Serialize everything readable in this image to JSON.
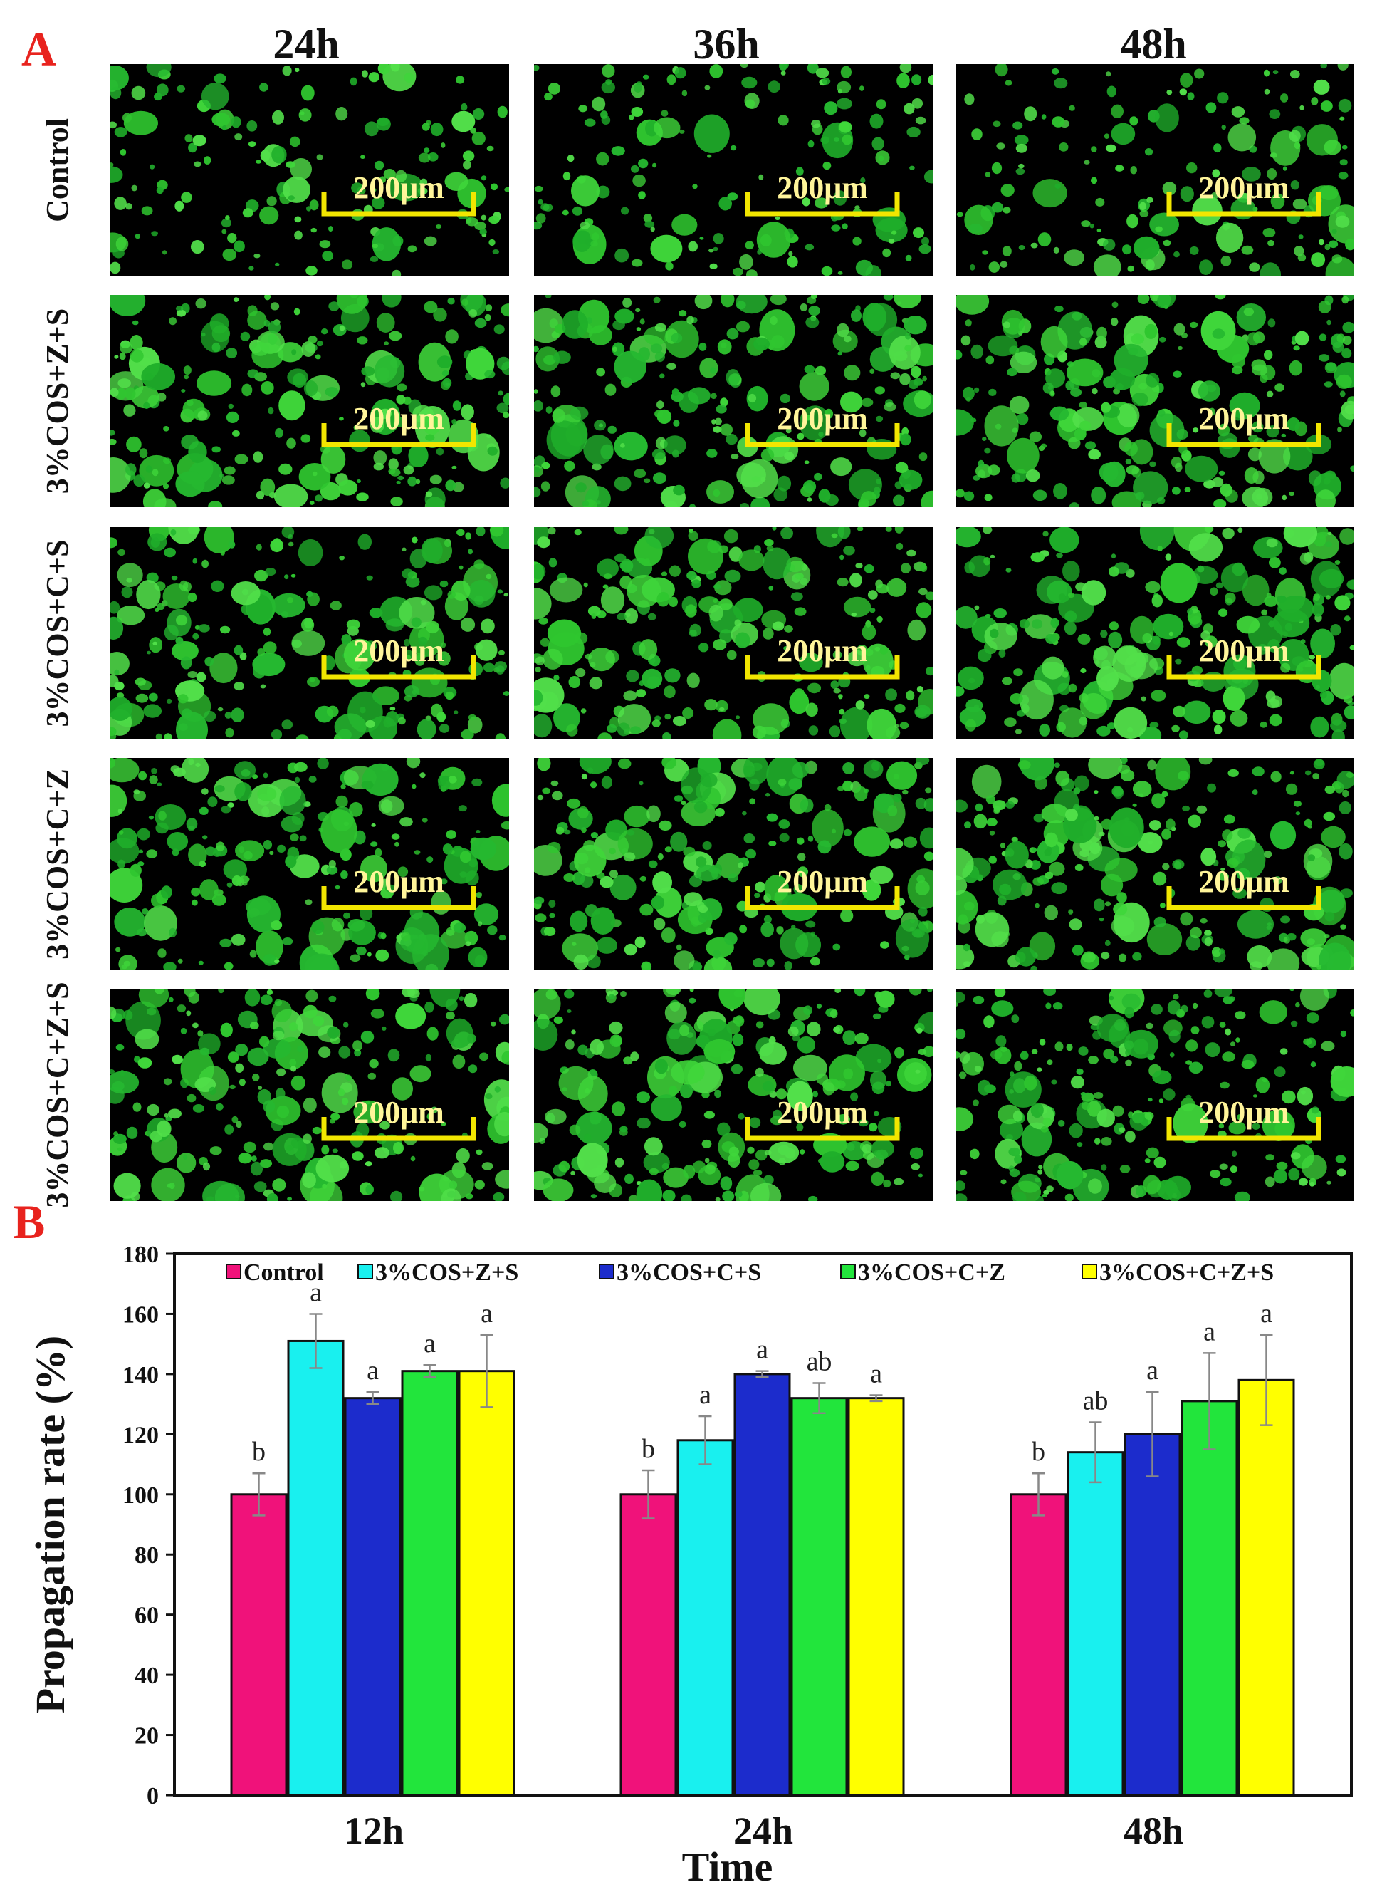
{
  "panel_a": {
    "letter": "A",
    "columns": [
      "24h",
      "36h",
      "48h"
    ],
    "rows": [
      "Control",
      "3%COS+Z+S",
      "3%COS+C+S",
      "3%COS+C+Z",
      "3%COS+C+Z+S"
    ],
    "scale_bar_label": "200μm"
  },
  "colors": {
    "Control": "#f0127a",
    "3%COS+Z+S": "#19f0ef",
    "3%COS+C+S": "#1c2ccc",
    "3%COS+C+Z": "#22e53c",
    "3%COS+C+Z+S": "#ffff00",
    "micro_bg": "#000000",
    "micro_cell": "#2fc62f",
    "scale_bar": "#f2e600"
  },
  "chart_data": {
    "type": "bar",
    "panel_letter": "B",
    "title": "",
    "xlabel": "Time",
    "ylabel": "Propagation rate (%)",
    "ylim": [
      0,
      180
    ],
    "yticks": [
      0,
      20,
      40,
      60,
      80,
      100,
      120,
      140,
      160,
      180
    ],
    "categories": [
      "12h",
      "24h",
      "48h"
    ],
    "legend_position": "top",
    "series": [
      {
        "name": "Control",
        "values": [
          100,
          100,
          100
        ],
        "errors": [
          7,
          8,
          7
        ],
        "letters": [
          "b",
          "b",
          "b"
        ]
      },
      {
        "name": "3%COS+Z+S",
        "values": [
          151,
          118,
          114
        ],
        "errors": [
          9,
          8,
          10
        ],
        "letters": [
          "a",
          "a",
          "ab"
        ]
      },
      {
        "name": "3%COS+C+S",
        "values": [
          132,
          140,
          120
        ],
        "errors": [
          2,
          1,
          14
        ],
        "letters": [
          "a",
          "a",
          "a"
        ]
      },
      {
        "name": "3%COS+C+Z",
        "values": [
          141,
          132,
          131
        ],
        "errors": [
          2,
          5,
          16
        ],
        "letters": [
          "a",
          "ab",
          "a"
        ]
      },
      {
        "name": "3%COS+C+Z+S",
        "values": [
          141,
          132,
          138
        ],
        "errors": [
          12,
          1,
          15
        ],
        "letters": [
          "a",
          "a",
          "a"
        ]
      }
    ]
  }
}
